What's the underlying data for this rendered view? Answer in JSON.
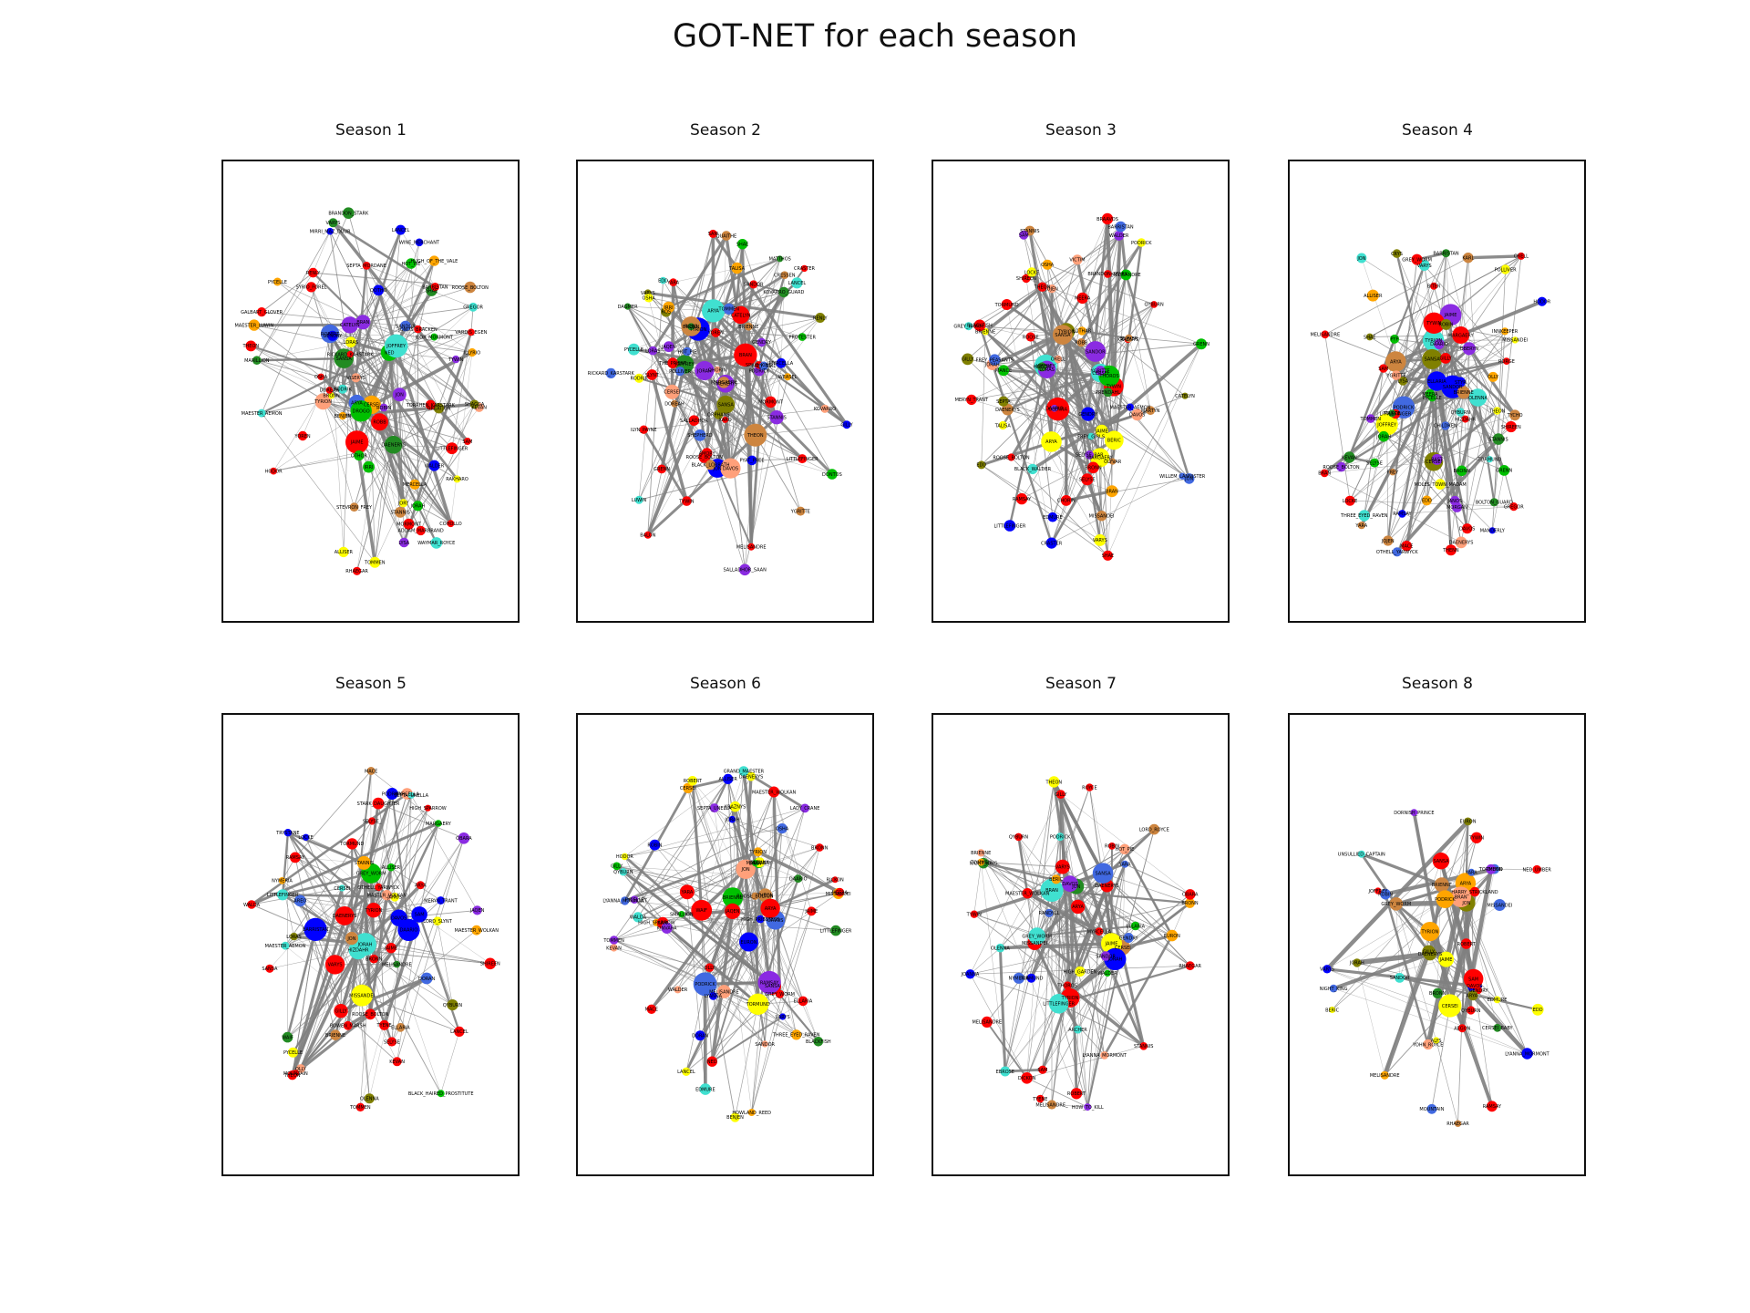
{
  "figure": {
    "title": "GOT-NET for each season"
  },
  "palette": [
    "#ff0000",
    "#ff0000",
    "#ff0000",
    "#ff0000",
    "#0000ff",
    "#8a2be2",
    "#40e0d0",
    "#ffff00",
    "#ffa500",
    "#ffa07a",
    "#4169e1",
    "#00c000",
    "#808000",
    "#cd853f",
    "#228b22"
  ],
  "edge_color": "#808080",
  "panels": [
    {
      "title": "Season 1",
      "labels": [
        "ROBERT",
        "NED",
        "CERSEI",
        "TYRION",
        "JOFFREY",
        "SANSA",
        "ARYA",
        "JAIME",
        "CATELYN",
        "ROBB",
        "BRAN",
        "JON",
        "DAENERYS",
        "DROGO",
        "VISERYS",
        "JORAH",
        "LITTLEFINGER",
        "VARYS",
        "RENLY",
        "STANNIS",
        "TYWIN",
        "LANCEL",
        "SHAE",
        "BRONN",
        "LYSA",
        "ROBIN",
        "THEON",
        "HODOR",
        "SAM",
        "MORMONT",
        "BENJEN",
        "YOREN",
        "SEPTA_MORDANE",
        "SYRIO_FOREL",
        "MIRRI_MAZ_DUUR",
        "RAKHARO",
        "DOREAH",
        "IRRI",
        "WAYMAR_ROYCE",
        "ADDAM_MARBRAND",
        "RICKARD_KARSTARK",
        "GREATJON",
        "JORY",
        "LORAS",
        "GENDRY",
        "TOMMEN",
        "HOT_PIE",
        "ROOSE_BOLTON",
        "WALDER",
        "MARILLION",
        "HUGH_OF_THE_VALE",
        "GALBART_GLOVER",
        "KEVAN",
        "GREGOR",
        "SANDOR",
        "WINE_MERCHANT",
        "PYCELLE",
        "JEOR_MORMONT",
        "ALLISER",
        "STEVRON_FREY",
        "OSHA",
        "MAESTER_LUWIN",
        "RODRIK",
        "MERCELLA",
        "JONOS_BRACKEN",
        "MAESTER_AEMON",
        "BARRISTAN",
        "RHAEGAR",
        "OTHOR",
        "ILLYRIO",
        "QOTHO",
        "COHOLLO",
        "VARDIS_EGEN",
        "SHAGGA",
        "BRANDON_STARK",
        "TORRHEN_KARSTARK"
      ]
    },
    {
      "title": "Season 2",
      "labels": [
        "TYRION",
        "CERSEI",
        "JOFFREY",
        "SANSA",
        "ARYA",
        "ROBB",
        "CATELYN",
        "BRAN",
        "THEON",
        "JON",
        "DAENERYS",
        "JORAH",
        "STANNIS",
        "DAVOS",
        "MELISANDRE",
        "RENLY",
        "LORAS",
        "MARGAERY",
        "BRIENNE",
        "TYWIN",
        "GENDRY",
        "HOT_PIE",
        "YOREN",
        "JAQEN",
        "SHAE",
        "BRONN",
        "VARYS",
        "LITTLEFINGER",
        "SANDOR",
        "PODRICK",
        "XARO",
        "PYAT_PREE",
        "QHORIN",
        "YGRITTE",
        "OSHA",
        "LUWIN",
        "RODRIK",
        "TALISA",
        "ROOSE_BOLTON",
        "CRESSEN",
        "SALLADHOR_SAAN",
        "ROS",
        "LANCEL",
        "PYCELLE",
        "TOMMEN",
        "MYRCELLA",
        "KOVARRO",
        "IRRI",
        "DOREAH",
        "CRASTER",
        "GILLY",
        "SAM",
        "GRENN",
        "EDD",
        "MORMONT",
        "AMORY",
        "POLLIVER",
        "WEASEL",
        "BLACK_LORRATH",
        "SPICE_KING",
        "ORPHANS",
        "SHEPHERD",
        "DAGMER",
        "THE_PRIEST",
        "YARA",
        "BALON",
        "ILYN_PAYNE",
        "FREY_GIRL",
        "RICKARD_KARSTARK",
        "PROTESTER",
        "SLYNT",
        "MATTHOS",
        "DONTOS",
        "QUAITHE",
        "KOVARRO_GUARD",
        "SALLADHOR"
      ]
    },
    {
      "title": "Season 3",
      "labels": [
        "TYRION",
        "JAIME",
        "CERSEI",
        "TYWIN",
        "JOFFREY",
        "SANSA",
        "MARGAERY",
        "OLENNA",
        "LORAS",
        "ARYA",
        "SANDOR",
        "GENDRY",
        "THOROS",
        "BERIC",
        "MELISANDRE",
        "STANNIS",
        "DAVOS",
        "ROBB",
        "CATELYN",
        "TALISA",
        "WALDER",
        "ROOSE_BOLTON",
        "BRIENNE",
        "THEON",
        "RAMSAY",
        "BRAN",
        "JOJEN",
        "MEERA",
        "HODOR",
        "OSHA",
        "JON",
        "YGRITTE",
        "TORMUND",
        "ORELL",
        "MANCE",
        "SAM",
        "GILLY",
        "CRASTER",
        "DAENERYS",
        "JORAH",
        "BARRISTAN",
        "MISSANDEI",
        "GREY_WORM",
        "DAARIO",
        "KRAZNYS",
        "SHIREEN",
        "VARYS",
        "LITTLEFINGER",
        "PODRICK",
        "SHAE",
        "BRONN",
        "QYBURN",
        "LOTHAR",
        "BLACK_WALDER",
        "FREY_GIRLS",
        "BRANDON_STARK",
        "SEPTA",
        "MAESTER_AEMON",
        "EDMURE",
        "BLACKFISH",
        "WILLEM_LANNISTER",
        "OLYVAR",
        "LOCKE",
        "GRENN",
        "EDD",
        "SELYSE",
        "MARTYN",
        "ROOSE",
        "VICTIM",
        "SLAVER",
        "CHORIN",
        "FREY_PEASANTS",
        "SELYSE_BAR",
        "MERYN_TRANT",
        "PRENDAHL",
        "BRAAVOS"
      ]
    },
    {
      "title": "Season 4",
      "labels": [
        "TYRION",
        "JAIME",
        "CERSEI",
        "TYWIN",
        "JOFFREY",
        "SANSA",
        "ARYA",
        "SANDOR",
        "BRIENNE",
        "PODRICK",
        "OBERYN",
        "ELLARIA",
        "MARGAERY",
        "OLENNA",
        "TOMMEN",
        "LITTLEFINGER",
        "LYSA",
        "ROBIN",
        "BRONN",
        "SHAE",
        "VARYS",
        "DAENERYS",
        "JORAH",
        "BARRISTAN",
        "MISSANDEI",
        "GREY_WORM",
        "DAARIO",
        "BRAN",
        "JOJEN",
        "MEERA",
        "HODOR",
        "JON",
        "YGRITTE",
        "TORMUND",
        "MANCE",
        "STYR",
        "SAM",
        "GILLY",
        "ALLISER",
        "JANOS",
        "LOCKE",
        "KARL",
        "RAST",
        "RAMSAY",
        "THEON",
        "YARA",
        "ROOSE_BOLTON",
        "STANNIS",
        "DAVOS",
        "MELISANDRE",
        "SELYSE",
        "SHIREEN",
        "GREGOR",
        "QYBURN",
        "PYCELLE",
        "MACE",
        "KEVAN",
        "HIZDAHR",
        "OTHELL_YARWYCK",
        "MORGAN",
        "POLLIVER",
        "RORGE",
        "BITER",
        "THREE_EYED_RAVEN",
        "CHILDREN",
        "GRENN",
        "PYP",
        "EDD",
        "OLLY",
        "ORELL",
        "TYCHO",
        "MOLES_TOWN_MADAM",
        "FREY",
        "THENN",
        "BOLTON_GUARD",
        "MANDERLY",
        "INNKEEPER",
        "CRYS"
      ]
    },
    {
      "title": "Season 5",
      "labels": [
        "TYRION",
        "VARYS",
        "DAENERYS",
        "JORAH",
        "MISSANDEI",
        "GREY_WORM",
        "DAARIO",
        "BARRISTAN",
        "HIZDAHR",
        "JON",
        "SAM",
        "GILLY",
        "STANNIS",
        "DAVOS",
        "MELISANDRE",
        "SELYSE",
        "SHIREEN",
        "ALLISER",
        "OLLY",
        "TORMUND",
        "CERSEI",
        "JAIME",
        "TOMMEN",
        "MARGAERY",
        "LORAS",
        "OLENNA",
        "HIGH_SPARROW",
        "LANCEL",
        "QYBURN",
        "KEVAN",
        "MACE",
        "PYCELLE",
        "SANSA",
        "RAMSAY",
        "THEON",
        "ROOSE_BOLTON",
        "LITTLEFINGER",
        "BRIENNE",
        "PODRICK",
        "ARYA",
        "JAQEN",
        "WAIF",
        "MERYN_TRANT",
        "BRONN",
        "ELLARIA",
        "DORAN",
        "TRYSTANE",
        "MYRCELLA",
        "AREO",
        "OBARA",
        "NYMERIA",
        "TYENE",
        "MAESTER_AEMON",
        "SEPTA_UNELLA",
        "WALDA",
        "OTHELL_YARWYCK",
        "MOUNTAIN",
        "BLACK_HAIRED_PROSTITUTE",
        "BOWEN_MARSH",
        "JANOS",
        "LOCKE",
        "SELYSE_",
        "MASTER_VOLKAN",
        "STARK_DAUGHTER",
        "LORD_SLYNT",
        "MAESTER_WOLKAN"
      ]
    },
    {
      "title": "Season 6",
      "labels": [
        "JON",
        "SANSA",
        "DAVOS",
        "MELISANDRE",
        "TORMUND",
        "BRIENNE",
        "PODRICK",
        "RAMSAY",
        "THEON",
        "YARA",
        "EURON",
        "ARYA",
        "WAIF",
        "JAQEN",
        "CERSEI",
        "JAIME",
        "TOMMEN",
        "MARGAERY",
        "HIGH_SPARROW",
        "OLENNA",
        "QYBURN",
        "TYRION",
        "VARYS",
        "MISSANDEI",
        "GREY_WORM",
        "DAENERYS",
        "DAARIO",
        "JORAH",
        "BRAN",
        "MEERA",
        "HODOR",
        "THREE_EYED_RAVEN",
        "WALDER",
        "BLACKFISH",
        "EDMURE",
        "SAM",
        "GILLY",
        "OSHA",
        "RICKON",
        "SMALLJON",
        "LYANNA_MORMONT",
        "LITTLEFINGER",
        "ROBIN",
        "ELLARIA",
        "DORAN",
        "KRAZNYS",
        "MAESTER_WOLKAN",
        "KINVARA",
        "HIGH_PRIESTESS",
        "BENJEN",
        "ALLISER",
        "OLLY",
        "ROOSE_BOLTON",
        "WALDA",
        "ROBERT",
        "NED",
        "LYANNA",
        "HOWLAND_REED",
        "LANCEL",
        "KEVAN",
        "MACE",
        "PYCELLE",
        "BRONN",
        "SANDOR",
        "SEPTA_UNELLA",
        "LADY_CRANE",
        "GRAND_MAESTER"
      ]
    },
    {
      "title": "Season 7",
      "labels": [
        "DAENERYS",
        "JON",
        "TYRION",
        "CERSEI",
        "JAIME",
        "SANSA",
        "ARYA",
        "BRAN",
        "LITTLEFINGER",
        "DAVOS",
        "JORAH",
        "MISSANDEI",
        "GREY_WORM",
        "VARYS",
        "SAM",
        "GILLY",
        "EURON",
        "YARA",
        "THEON",
        "ELLARIA",
        "OLENNA",
        "QYBURN",
        "BRONN",
        "SANDOR",
        "BERIC",
        "THOROS",
        "GENDRY",
        "TORMUND",
        "BRIENNE",
        "PODRICK",
        "MELISANDRE",
        "HOT_PIE",
        "DICKON",
        "RANDYLL",
        "LYANNA_MORMONT",
        "ROBIN",
        "MAESTER_WOLKAN",
        "EBROSE",
        "WALDER",
        "HIGH_GARDEN",
        "STANNIS",
        "NIGHT_KING",
        "TYENE",
        "OBARA",
        "NYMERIA",
        "JOANNA",
        "RHAEGAR",
        "ROBERT",
        "MELISANDRE_",
        "TOMMEN",
        "MYRCELLA",
        "TYWIN",
        "HOW_TO_KILL",
        "ARCHER",
        "LORD_ROYCE",
        "ROYCE"
      ]
    },
    {
      "title": "Season 8",
      "labels": [
        "JON",
        "DAENERYS",
        "TYRION",
        "SANSA",
        "ARYA",
        "BRAN",
        "JAIME",
        "CERSEI",
        "BRIENNE",
        "PODRICK",
        "DAVOS",
        "SAM",
        "GILLY",
        "GREY_WORM",
        "MISSANDEI",
        "VARYS",
        "JORAH",
        "THEON",
        "TORMUND",
        "GENDRY",
        "SANDOR",
        "BERIC",
        "EURON",
        "QYBURN",
        "BRONN",
        "YARA",
        "EDD",
        "LYANNA_MORMONT",
        "MELISANDRE",
        "NIGHT_KING",
        "MOUNTAIN",
        "ROBIN",
        "YOHN_ROYCE",
        "EDMURE",
        "ARYA_",
        "CERSEI_BABY",
        "UNSULLIED_CAPTAIN",
        "HARRY_STRICKLAND",
        "ALYS",
        "NED_UMBER",
        "DORNISH_PRINCE",
        "RAMSAY",
        "ROBERT",
        "TYWIN",
        "JOFFREY",
        "AEGON",
        "RHAEGAR"
      ]
    }
  ]
}
